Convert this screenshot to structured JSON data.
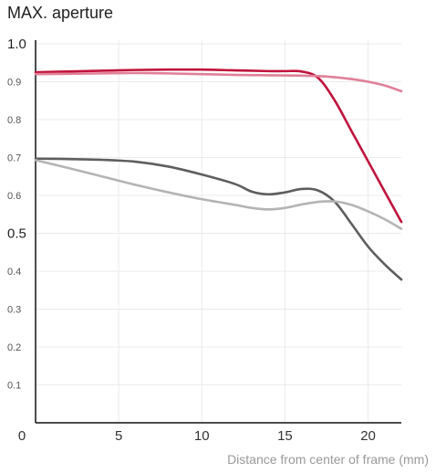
{
  "chart_data": {
    "type": "line",
    "title": "MAX. aperture",
    "xlabel": "Distance from center of frame (mm)",
    "ylabel": "",
    "xlim": [
      0,
      22
    ],
    "ylim": [
      0,
      1.0
    ],
    "grid": true,
    "legend": "none",
    "x_ticks": [
      "0",
      "5",
      "10",
      "15",
      "20"
    ],
    "y_ticks": [
      "1.0",
      "0.9",
      "0.8",
      "0.7",
      "0.6",
      "0.5",
      "0.4",
      "0.3",
      "0.2",
      "0.1"
    ],
    "series": [
      {
        "color": "#c0143c",
        "x": [
          0,
          2,
          4,
          6,
          8,
          10,
          12,
          14,
          15,
          16,
          17,
          18,
          19,
          20,
          21,
          22
        ],
        "values": [
          0.925,
          0.927,
          0.929,
          0.931,
          0.932,
          0.932,
          0.93,
          0.928,
          0.928,
          0.927,
          0.91,
          0.85,
          0.77,
          0.69,
          0.61,
          0.53
        ]
      },
      {
        "color": "#e08098",
        "x": [
          0,
          2,
          4,
          6,
          8,
          10,
          12,
          14,
          16,
          17,
          18,
          19,
          20,
          21,
          22
        ],
        "values": [
          0.92,
          0.921,
          0.922,
          0.923,
          0.922,
          0.92,
          0.918,
          0.917,
          0.916,
          0.915,
          0.912,
          0.907,
          0.9,
          0.89,
          0.875
        ]
      },
      {
        "color": "#5e5e5e",
        "x": [
          0,
          2,
          4,
          6,
          8,
          10,
          12,
          13,
          14,
          15,
          16,
          17,
          18,
          19,
          20,
          21,
          22
        ],
        "values": [
          0.697,
          0.696,
          0.694,
          0.689,
          0.676,
          0.655,
          0.63,
          0.61,
          0.603,
          0.608,
          0.617,
          0.613,
          0.583,
          0.525,
          0.465,
          0.418,
          0.378
        ]
      },
      {
        "color": "#b4b4b4",
        "x": [
          0,
          2,
          4,
          6,
          8,
          10,
          12,
          13,
          14,
          15,
          16,
          17,
          18,
          19,
          20,
          21,
          22
        ],
        "values": [
          0.693,
          0.672,
          0.65,
          0.628,
          0.608,
          0.59,
          0.575,
          0.567,
          0.563,
          0.567,
          0.576,
          0.583,
          0.584,
          0.575,
          0.558,
          0.537,
          0.512
        ]
      }
    ]
  }
}
